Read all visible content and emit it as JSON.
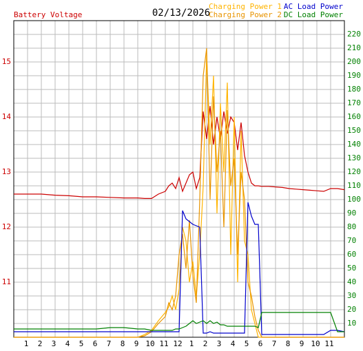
{
  "chart_data": {
    "type": "line",
    "title": "02/13/2026",
    "x": [
      0,
      1,
      2,
      3,
      4,
      5,
      6,
      7,
      8,
      9,
      9.5,
      10,
      10.5,
      11,
      11.25,
      11.5,
      11.75,
      12,
      12.25,
      12.5,
      12.75,
      13,
      13.25,
      13.5,
      13.75,
      14,
      14.25,
      14.5,
      14.75,
      15,
      15.25,
      15.5,
      15.75,
      16,
      16.25,
      16.5,
      16.75,
      17,
      17.25,
      17.5,
      17.75,
      18,
      18.5,
      19,
      19.5,
      20,
      20.5,
      21,
      21.5,
      22,
      22.5,
      23,
      23.5,
      24
    ],
    "series": [
      {
        "name": "Battery Voltage",
        "color": "#cc0000",
        "axis": "y",
        "values": [
          12.6,
          12.6,
          12.6,
          12.58,
          12.57,
          12.55,
          12.55,
          12.54,
          12.53,
          12.53,
          12.52,
          12.52,
          12.6,
          12.65,
          12.75,
          12.8,
          12.7,
          12.9,
          12.65,
          12.8,
          12.95,
          13.0,
          12.7,
          12.9,
          14.1,
          13.6,
          14.2,
          13.5,
          14.0,
          13.6,
          14.1,
          13.7,
          14.0,
          13.9,
          13.4,
          13.9,
          13.3,
          13.0,
          12.8,
          12.75,
          12.75,
          12.74,
          12.74,
          12.73,
          12.72,
          12.7,
          12.69,
          12.68,
          12.67,
          12.66,
          12.65,
          12.7,
          12.7,
          12.68
        ]
      },
      {
        "name": "Charging Power 1",
        "color": "#ffb400",
        "axis": "y2",
        "values": [
          0,
          0,
          0,
          0,
          0,
          0,
          0,
          0,
          0,
          0,
          2,
          5,
          12,
          18,
          22,
          30,
          20,
          35,
          80,
          70,
          40,
          55,
          30,
          60,
          110,
          205,
          140,
          190,
          90,
          170,
          120,
          185,
          60,
          160,
          40,
          150,
          70,
          60,
          20,
          10,
          0,
          0,
          0,
          0,
          0,
          0,
          0,
          0,
          0,
          0,
          0,
          0,
          0,
          0
        ]
      },
      {
        "name": "Charging Power 2",
        "color": "#e89400",
        "axis": "y2",
        "values": [
          0,
          0,
          0,
          0,
          0,
          0,
          0,
          0,
          0,
          0,
          1,
          4,
          10,
          15,
          25,
          20,
          30,
          60,
          75,
          50,
          85,
          45,
          25,
          100,
          190,
          210,
          100,
          175,
          120,
          150,
          80,
          165,
          110,
          130,
          60,
          120,
          100,
          40,
          30,
          15,
          5,
          0,
          0,
          0,
          0,
          0,
          0,
          0,
          0,
          0,
          0,
          0,
          0,
          0
        ]
      },
      {
        "name": "AC Load Power",
        "color": "#0000cc",
        "axis": "y2",
        "values": [
          4,
          4,
          4,
          4,
          4,
          4,
          4,
          4,
          4,
          4,
          4,
          4,
          4,
          4,
          4,
          4,
          4,
          4,
          92,
          86,
          84,
          82,
          81,
          80,
          3,
          3,
          4,
          3,
          3,
          3,
          3,
          3,
          3,
          3,
          3,
          3,
          3,
          98,
          88,
          82,
          82,
          2,
          2,
          2,
          2,
          2,
          2,
          2,
          2,
          2,
          2,
          5,
          5,
          4
        ]
      },
      {
        "name": "DC Load Power",
        "color": "#008000",
        "axis": "y2",
        "values": [
          6,
          6,
          6,
          6,
          6,
          6,
          6,
          7,
          7,
          6,
          6,
          5,
          5,
          5,
          5,
          5,
          6,
          6,
          7,
          8,
          10,
          12,
          10,
          11,
          12,
          10,
          12,
          10,
          11,
          9,
          9,
          8,
          8,
          8,
          8,
          8,
          8,
          8,
          8,
          8,
          7,
          18,
          18,
          18,
          18,
          18,
          18,
          18,
          18,
          18,
          18,
          18,
          4,
          4
        ]
      }
    ],
    "xlim": [
      0,
      24
    ],
    "xticks": [
      1,
      2,
      3,
      4,
      5,
      6,
      7,
      8,
      9,
      10,
      11,
      12,
      {
        "value": 13,
        "label": "1"
      },
      {
        "value": 14,
        "label": "2"
      },
      {
        "value": 15,
        "label": "3"
      },
      {
        "value": 16,
        "label": "4"
      },
      {
        "value": 17,
        "label": "5"
      },
      {
        "value": 18,
        "label": "6"
      },
      {
        "value": 19,
        "label": "7"
      },
      {
        "value": 20,
        "label": "8"
      },
      {
        "value": 21,
        "label": "9"
      },
      {
        "value": 22,
        "label": "10"
      },
      {
        "value": 23,
        "label": "11"
      }
    ],
    "ylim": [
      10,
      15.75
    ],
    "yticks": [
      11,
      12,
      13,
      14,
      15
    ],
    "y2lim": [
      0,
      230
    ],
    "y2ticks": [
      10,
      20,
      30,
      40,
      50,
      60,
      70,
      80,
      90,
      100,
      110,
      120,
      130,
      140,
      150,
      160,
      170,
      180,
      190,
      200,
      210,
      220
    ],
    "grid": true
  }
}
